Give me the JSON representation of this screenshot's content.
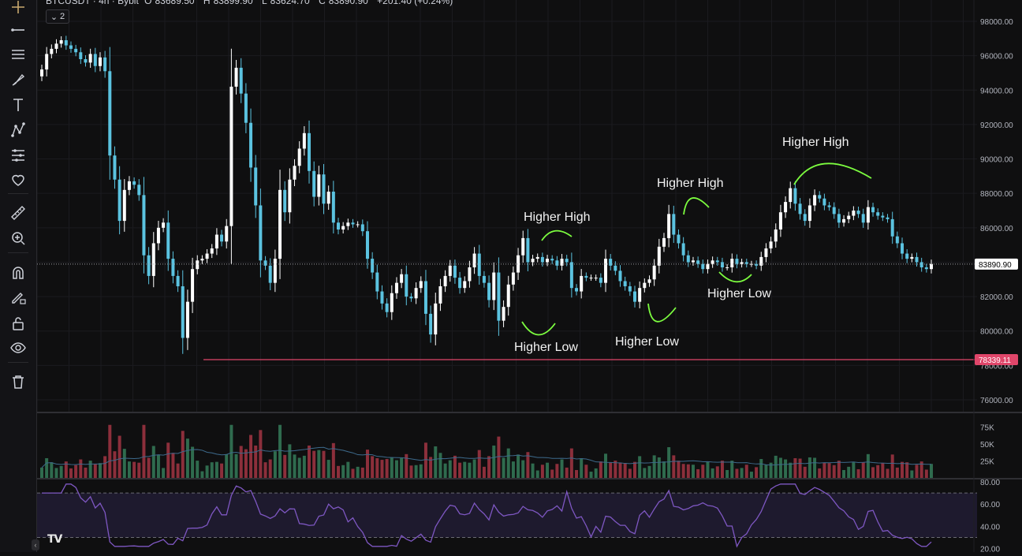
{
  "header": {
    "symbol": "BTCUSDT · 4h · Bybit",
    "open_label": "O",
    "open": "83689.50",
    "high_label": "H",
    "high": "83899.90",
    "low_label": "L",
    "low": "83624.70",
    "close_label": "C",
    "close": "83890.90",
    "change": "+201.40 (+0.24%)",
    "collapse_count": "2"
  },
  "toolbar": {
    "icons": [
      "crosshair-icon",
      "trend-line-icon",
      "horizontal-lines-icon",
      "brush-icon",
      "text-icon",
      "pattern-icon",
      "measure-lines-icon",
      "heart-icon",
      "ruler-icon",
      "zoom-in-icon",
      "magnet-icon",
      "lock-pencil-icon",
      "lock-icon",
      "eye-icon",
      "trash-icon"
    ]
  },
  "price_axis": {
    "labels": [
      "98000.00",
      "96000.00",
      "94000.00",
      "92000.00",
      "90000.00",
      "88000.00",
      "86000.00",
      "84000.00",
      "82000.00",
      "80000.00",
      "78000.00",
      "76000.00"
    ],
    "current_price": "83890.90",
    "support_price": "78339.11",
    "current_color": "#ffffff",
    "support_color": "#e0466a"
  },
  "volume_axis": {
    "labels": [
      "75K",
      "50K",
      "25K"
    ]
  },
  "rsi_axis": {
    "labels": [
      "80.00",
      "60.00",
      "40.00",
      "20.00"
    ]
  },
  "annotations": [
    {
      "text": "Higher High",
      "kind": "high"
    },
    {
      "text": "Higher Low",
      "kind": "low"
    },
    {
      "text": "Higher Low",
      "kind": "low"
    },
    {
      "text": "Higher High",
      "kind": "high"
    },
    {
      "text": "Higher Low",
      "kind": "low"
    },
    {
      "text": "Higher High",
      "kind": "high"
    }
  ],
  "colors": {
    "bull": "#ffffff",
    "bear": "#5bc3e0",
    "vol_bull": "#2f6b4e",
    "vol_bear": "#8c2f3b",
    "rsi_line": "#7e57c2",
    "rsi_band": "#1e1a2e",
    "annotation_stroke": "#7cfc3f",
    "background": "#0f0f10"
  },
  "chart_data": {
    "type": "candlestick",
    "timeframe": "4h",
    "key_levels": {
      "support": 78339.11,
      "last": 83890.9
    },
    "closes": [
      95200,
      96100,
      96400,
      96700,
      96900,
      96600,
      96400,
      96200,
      95800,
      95600,
      96100,
      95400,
      95900,
      95100,
      90200,
      88800,
      86400,
      88200,
      88700,
      88500,
      87900,
      84400,
      83200,
      85100,
      86000,
      86300,
      84200,
      83200,
      82600,
      79600,
      81700,
      83600,
      84100,
      84200,
      84500,
      84800,
      85600,
      85200,
      86100,
      94200,
      95300,
      93800,
      92100,
      89500,
      87300,
      84100,
      83800,
      82800,
      84200,
      88200,
      86900,
      88800,
      89600,
      90600,
      91500,
      89300,
      87800,
      89100,
      87400,
      88100,
      86300,
      85900,
      86100,
      86300,
      86200,
      86200,
      85800,
      84200,
      83400,
      82300,
      81600,
      81100,
      82200,
      82800,
      83300,
      82000,
      81900,
      82500,
      82900,
      81000,
      79800,
      81600,
      82600,
      83200,
      83800,
      83100,
      82500,
      82900,
      83700,
      84500,
      83200,
      82800,
      81800,
      83400,
      80600,
      81400,
      82700,
      83400,
      84400,
      85400,
      84000,
      84200,
      84300,
      84000,
      84200,
      84100,
      83800,
      84200,
      84000,
      82500,
      82300,
      83200,
      83100,
      83100,
      83100,
      82800,
      84200,
      83800,
      83500,
      82900,
      82600,
      82300,
      81700,
      82500,
      82800,
      83000,
      83800,
      84900,
      85400,
      86800,
      85600,
      85100,
      84400,
      84000,
      84100,
      83900,
      83600,
      83900,
      84100,
      84000,
      83700,
      83700,
      84200,
      83900,
      84000,
      83900,
      83900,
      83800,
      84300,
      84800,
      85200,
      85900,
      86900,
      87500,
      88300,
      87400,
      86800,
      86400,
      87300,
      87900,
      87700,
      87300,
      87200,
      86800,
      86300,
      86500,
      86700,
      87000,
      86800,
      86300,
      87200,
      86900,
      86700,
      86600,
      86500,
      85500,
      85100,
      84500,
      84200,
      84300,
      84000,
      83700,
      83600,
      83900
    ]
  }
}
